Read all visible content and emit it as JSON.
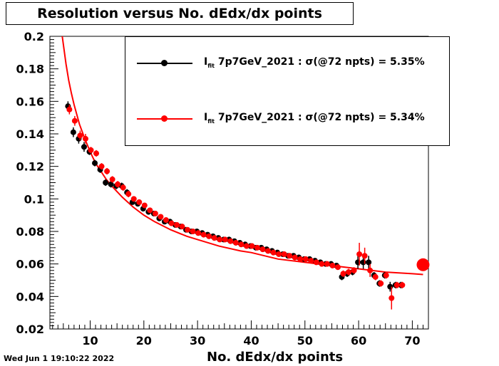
{
  "title": "Resolution versus No. dEdx/dx points",
  "timestamp": "Wed Jun  1 19:10:22 2022",
  "legend": [
    {
      "prefix": "I",
      "sub": "fit",
      "text": " 7p7GeV_2021 : σ(@72 npts) =  5.35%",
      "color": "#000000"
    },
    {
      "prefix": "I",
      "sub": "fit",
      "text": " 7p7GeV_2021 : σ(@72 npts) =  5.34%",
      "color": "#ff0000"
    }
  ],
  "chart_data": {
    "type": "scatter",
    "title": "Resolution versus No. dEdx/dx points",
    "xlabel": "No. dEdx/dx points",
    "ylabel": "",
    "xlim": [
      2.5,
      73
    ],
    "ylim": [
      0.02,
      0.2
    ],
    "xticks": [
      10,
      20,
      30,
      40,
      50,
      60,
      70
    ],
    "yticks": [
      0.02,
      0.04,
      0.06,
      0.08,
      0.1,
      0.12,
      0.14,
      0.16,
      0.18,
      0.2
    ],
    "ytick_labels": [
      "0.02",
      "0.04",
      "0.06",
      "0.08",
      "0.1",
      "0.12",
      "0.14",
      "0.16",
      "0.18",
      "0.2"
    ],
    "series": [
      {
        "name": "I fit 7p7GeV_2021 : σ(@72 npts) =  5.35%",
        "color": "#000000",
        "x": [
          6,
          7,
          8,
          9,
          10,
          11,
          12,
          13,
          14,
          15,
          16,
          17,
          18,
          19,
          20,
          21,
          22,
          23,
          24,
          25,
          26,
          27,
          28,
          29,
          30,
          31,
          32,
          33,
          34,
          35,
          36,
          37,
          38,
          39,
          40,
          41,
          42,
          43,
          44,
          45,
          46,
          47,
          48,
          49,
          50,
          51,
          52,
          53,
          54,
          55,
          56,
          57,
          58,
          59,
          60,
          61,
          62,
          63,
          64,
          65,
          66,
          67,
          68
        ],
        "y": [
          0.157,
          0.141,
          0.137,
          0.132,
          0.129,
          0.122,
          0.118,
          0.11,
          0.109,
          0.108,
          0.108,
          0.104,
          0.098,
          0.097,
          0.094,
          0.092,
          0.091,
          0.088,
          0.086,
          0.086,
          0.084,
          0.083,
          0.081,
          0.08,
          0.08,
          0.079,
          0.078,
          0.077,
          0.076,
          0.075,
          0.075,
          0.074,
          0.073,
          0.072,
          0.071,
          0.07,
          0.07,
          0.069,
          0.068,
          0.067,
          0.066,
          0.065,
          0.065,
          0.064,
          0.063,
          0.063,
          0.062,
          0.061,
          0.06,
          0.06,
          0.059,
          0.052,
          0.054,
          0.055,
          0.061,
          0.061,
          0.061,
          0.053,
          0.048,
          0.053,
          0.046,
          0.047,
          0.047
        ],
        "err": [
          0.003,
          0.003,
          0.003,
          0.003,
          0.002,
          0.002,
          0.002,
          0.002,
          0.002,
          0.002,
          0.002,
          0.002,
          0.001,
          0.001,
          0.001,
          0.001,
          0.001,
          0.001,
          0.001,
          0.001,
          0.001,
          0.001,
          0.001,
          0.001,
          0.001,
          0.001,
          0.001,
          0.001,
          0.001,
          0.001,
          0.001,
          0.001,
          0.001,
          0.001,
          0.001,
          0.001,
          0.001,
          0.001,
          0.001,
          0.001,
          0.001,
          0.001,
          0.001,
          0.001,
          0.001,
          0.001,
          0.001,
          0.001,
          0.001,
          0.001,
          0.001,
          0.002,
          0.002,
          0.002,
          0.004,
          0.004,
          0.004,
          0.002,
          0.002,
          0.002,
          0.003,
          0.002,
          0.002
        ]
      },
      {
        "name": "I fit 7p7GeV_2021 : σ(@72 npts) =  5.34%",
        "color": "#ff0000",
        "x": [
          6,
          7,
          8,
          9,
          10,
          11,
          12,
          13,
          14,
          15,
          16,
          17,
          18,
          19,
          20,
          21,
          22,
          23,
          24,
          25,
          26,
          27,
          28,
          29,
          30,
          31,
          32,
          33,
          34,
          35,
          36,
          37,
          38,
          39,
          40,
          41,
          42,
          43,
          44,
          45,
          46,
          47,
          48,
          49,
          50,
          51,
          52,
          53,
          54,
          55,
          56,
          57,
          58,
          59,
          60,
          61,
          62,
          63,
          64,
          65,
          66,
          67,
          68
        ],
        "y": [
          0.155,
          0.148,
          0.139,
          0.137,
          0.13,
          0.128,
          0.12,
          0.117,
          0.112,
          0.109,
          0.107,
          0.103,
          0.1,
          0.098,
          0.096,
          0.093,
          0.091,
          0.089,
          0.087,
          0.085,
          0.084,
          0.083,
          0.081,
          0.08,
          0.079,
          0.078,
          0.077,
          0.076,
          0.075,
          0.075,
          0.074,
          0.073,
          0.072,
          0.071,
          0.071,
          0.07,
          0.069,
          0.068,
          0.067,
          0.066,
          0.066,
          0.065,
          0.064,
          0.063,
          0.063,
          0.062,
          0.061,
          0.06,
          0.06,
          0.059,
          0.058,
          0.054,
          0.055,
          0.056,
          0.066,
          0.065,
          0.056,
          0.052,
          0.048,
          0.053,
          0.039,
          0.047,
          0.047
        ],
        "err": [
          0.003,
          0.003,
          0.003,
          0.003,
          0.002,
          0.002,
          0.002,
          0.002,
          0.002,
          0.002,
          0.002,
          0.002,
          0.001,
          0.001,
          0.001,
          0.001,
          0.001,
          0.001,
          0.001,
          0.001,
          0.001,
          0.001,
          0.001,
          0.001,
          0.001,
          0.001,
          0.001,
          0.001,
          0.001,
          0.001,
          0.001,
          0.001,
          0.001,
          0.001,
          0.001,
          0.001,
          0.001,
          0.001,
          0.001,
          0.001,
          0.001,
          0.001,
          0.001,
          0.001,
          0.001,
          0.001,
          0.001,
          0.001,
          0.001,
          0.001,
          0.001,
          0.002,
          0.002,
          0.002,
          0.007,
          0.005,
          0.004,
          0.002,
          0.002,
          0.002,
          0.007,
          0.002,
          0.002
        ]
      }
    ],
    "fit": {
      "color": "#ff0000",
      "x": [
        4.8,
        5.5,
        6,
        6.5,
        7,
        8,
        9,
        10,
        11,
        12,
        13,
        14,
        16,
        18,
        20,
        22,
        25,
        28,
        30,
        34,
        38,
        40,
        45,
        50,
        55,
        60,
        65,
        70,
        72
      ],
      "y": [
        0.2,
        0.183,
        0.173,
        0.165,
        0.158,
        0.146,
        0.137,
        0.129,
        0.122,
        0.117,
        0.112,
        0.108,
        0.101,
        0.095,
        0.09,
        0.086,
        0.081,
        0.077,
        0.075,
        0.071,
        0.068,
        0.067,
        0.063,
        0.061,
        0.059,
        0.057,
        0.055,
        0.054,
        0.0535
      ]
    },
    "highlight_point": {
      "x": 72,
      "y": 0.0595,
      "color": "#ff0000"
    }
  }
}
